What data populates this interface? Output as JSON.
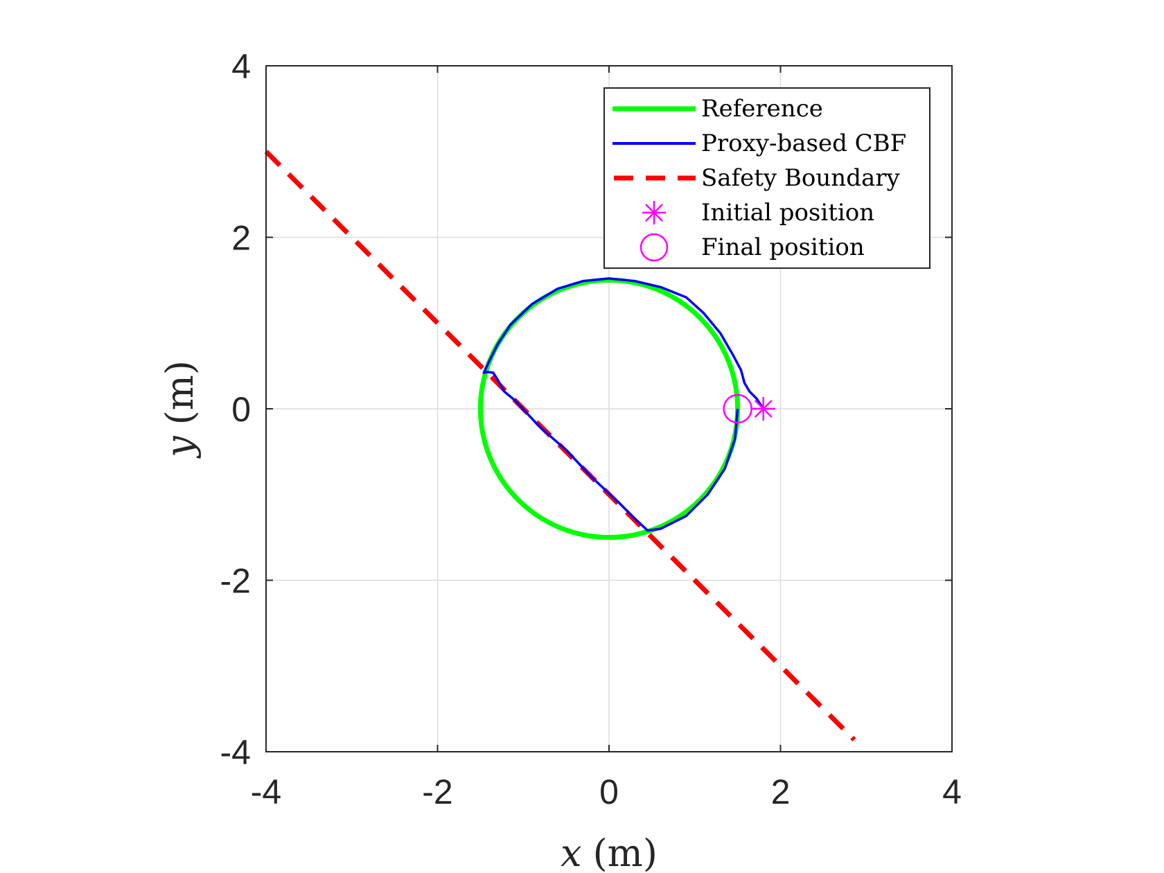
{
  "chart_data": {
    "type": "line",
    "xlabel_var": "x",
    "xlabel_unit": "(m)",
    "ylabel_var": "y",
    "ylabel_unit": "(m)",
    "xlim": [
      -4,
      4
    ],
    "ylim": [
      -4,
      4
    ],
    "xticks": [
      -4,
      -2,
      0,
      2,
      4
    ],
    "yticks": [
      -4,
      -2,
      0,
      2,
      4
    ],
    "xtick_labels": [
      "-4",
      "-2",
      "0",
      "2",
      "4"
    ],
    "ytick_labels": [
      "-4",
      "-2",
      "0",
      "2",
      "4"
    ],
    "grid": true,
    "legend_position": "top-right",
    "series": [
      {
        "name": "Reference",
        "color": "#00ff00",
        "style": "solid",
        "circle": {
          "cx": 0,
          "cy": 0,
          "r": 1.5
        }
      },
      {
        "name": "Proxy-based CBF",
        "color": "#0000ff",
        "style": "solid",
        "points": [
          [
            1.8,
            0.0
          ],
          [
            1.72,
            0.12
          ],
          [
            1.64,
            0.2
          ],
          [
            1.58,
            0.3
          ],
          [
            1.54,
            0.45
          ],
          [
            1.45,
            0.62
          ],
          [
            1.3,
            0.88
          ],
          [
            1.1,
            1.12
          ],
          [
            0.9,
            1.3
          ],
          [
            0.6,
            1.42
          ],
          [
            0.3,
            1.49
          ],
          [
            0.0,
            1.52
          ],
          [
            -0.3,
            1.49
          ],
          [
            -0.6,
            1.4
          ],
          [
            -0.9,
            1.22
          ],
          [
            -1.15,
            0.98
          ],
          [
            -1.3,
            0.75
          ],
          [
            -1.4,
            0.55
          ],
          [
            -1.46,
            0.42
          ],
          [
            -1.42,
            0.43
          ],
          [
            -1.35,
            0.42
          ],
          [
            -1.3,
            0.34
          ],
          [
            -1.22,
            0.2
          ],
          [
            -1.1,
            0.1
          ],
          [
            -0.8,
            -0.22
          ],
          [
            -0.5,
            -0.48
          ],
          [
            -0.2,
            -0.8
          ],
          [
            0.1,
            -1.08
          ],
          [
            0.3,
            -1.28
          ],
          [
            0.45,
            -1.42
          ],
          [
            0.6,
            -1.4
          ],
          [
            0.9,
            -1.25
          ],
          [
            1.15,
            -1.0
          ],
          [
            1.35,
            -0.7
          ],
          [
            1.47,
            -0.35
          ],
          [
            1.5,
            0.0
          ]
        ]
      },
      {
        "name": "Safety Boundary",
        "color": "#ff0000",
        "style": "dashed",
        "points": [
          [
            -4,
            3
          ],
          [
            2.86,
            -3.86
          ]
        ]
      }
    ],
    "markers": [
      {
        "name": "Initial position",
        "symbol": "asterisk",
        "color": "#ff00ff",
        "x": 1.8,
        "y": 0
      },
      {
        "name": "Final position",
        "symbol": "circle",
        "color": "#ff00ff",
        "x": 1.5,
        "y": 0
      }
    ]
  }
}
